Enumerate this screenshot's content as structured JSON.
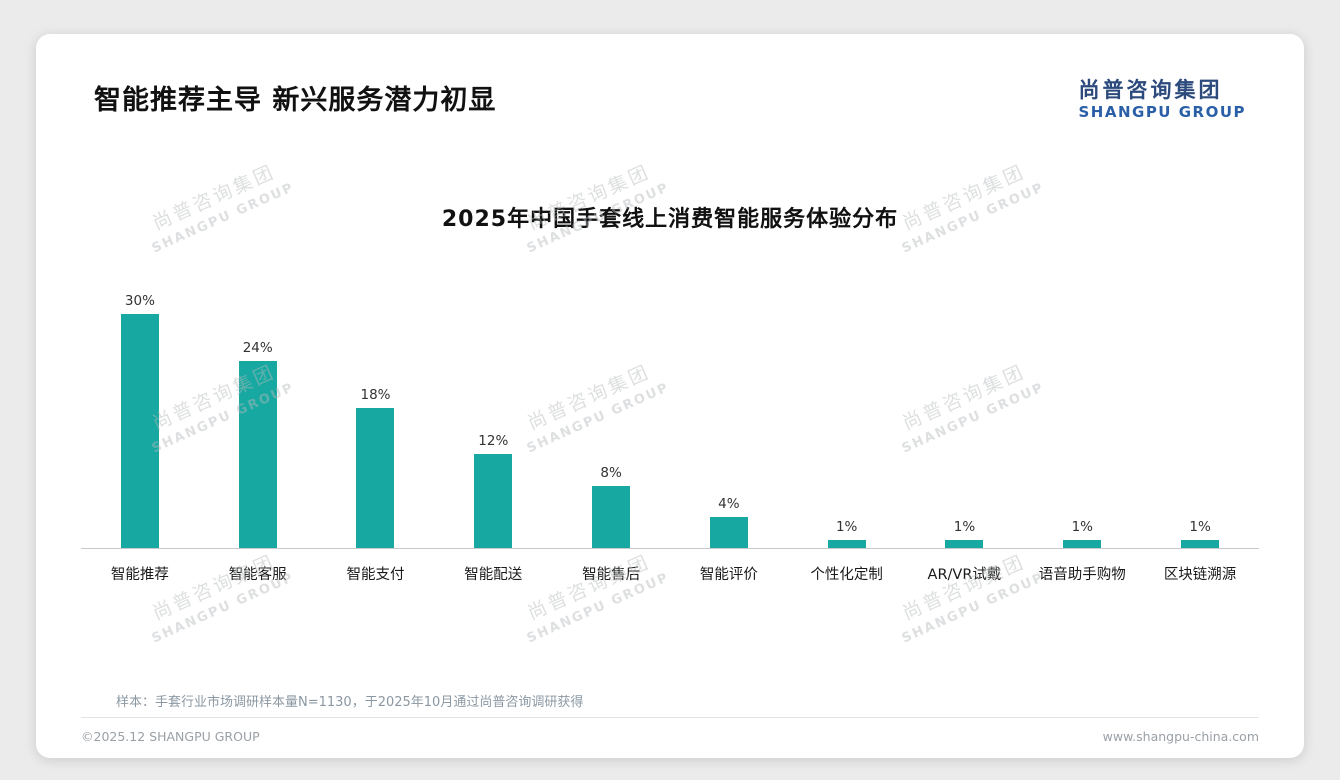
{
  "header": {
    "title": "智能推荐主导 新兴服务潜力初显"
  },
  "logo": {
    "cn": "尚普咨询集团",
    "en": "SHANGPU GROUP"
  },
  "watermark": {
    "cn": "尚普咨询集团",
    "en": "SHANGPU GROUP"
  },
  "note": {
    "text": "样本：手套行业市场调研样本量N=1130，于2025年10月通过尚普咨询调研获得"
  },
  "footer": {
    "copyright": "©2025.12 SHANGPU GROUP",
    "website": "www.shangpu-china.com"
  },
  "chart_data": {
    "type": "bar",
    "title": "2025年中国手套线上消费智能服务体验分布",
    "categories": [
      "智能推荐",
      "智能客服",
      "智能支付",
      "智能配送",
      "智能售后",
      "智能评价",
      "个性化定制",
      "AR/VR试戴",
      "语音助手购物",
      "区块链溯源"
    ],
    "values": [
      30,
      24,
      18,
      12,
      8,
      4,
      1,
      1,
      1,
      1
    ],
    "unit": "%",
    "bar_color": "#17a9a1",
    "ylim": [
      0,
      32
    ],
    "grid": false,
    "legend": false,
    "value_labels": true
  }
}
